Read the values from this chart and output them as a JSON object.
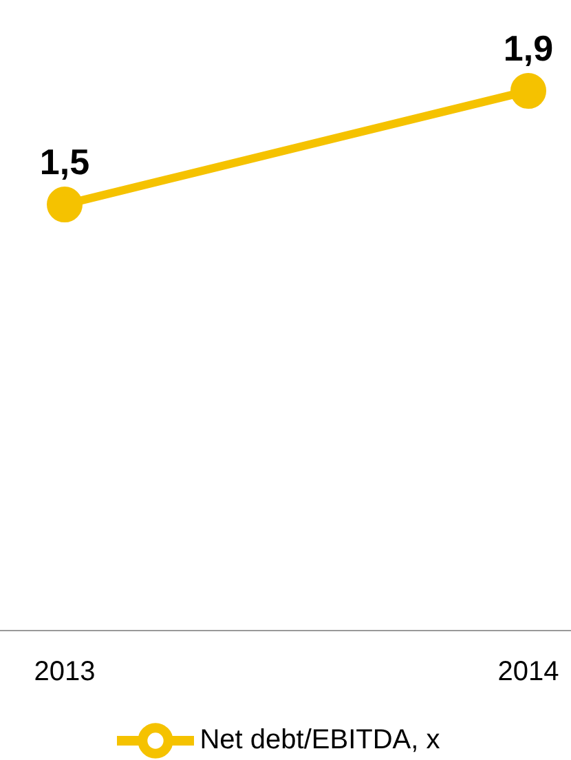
{
  "chart_data": {
    "type": "line",
    "categories": [
      "2013",
      "2014"
    ],
    "series": [
      {
        "name": "Net debt/EBITDA, x",
        "color": "#f5c200",
        "values": [
          1.5,
          1.9
        ],
        "value_labels": [
          "1,5",
          "1,9"
        ]
      }
    ],
    "tick_labels": "x",
    "legend": "bottom",
    "marker": "circle",
    "line_style": "solid",
    "grid": false
  }
}
